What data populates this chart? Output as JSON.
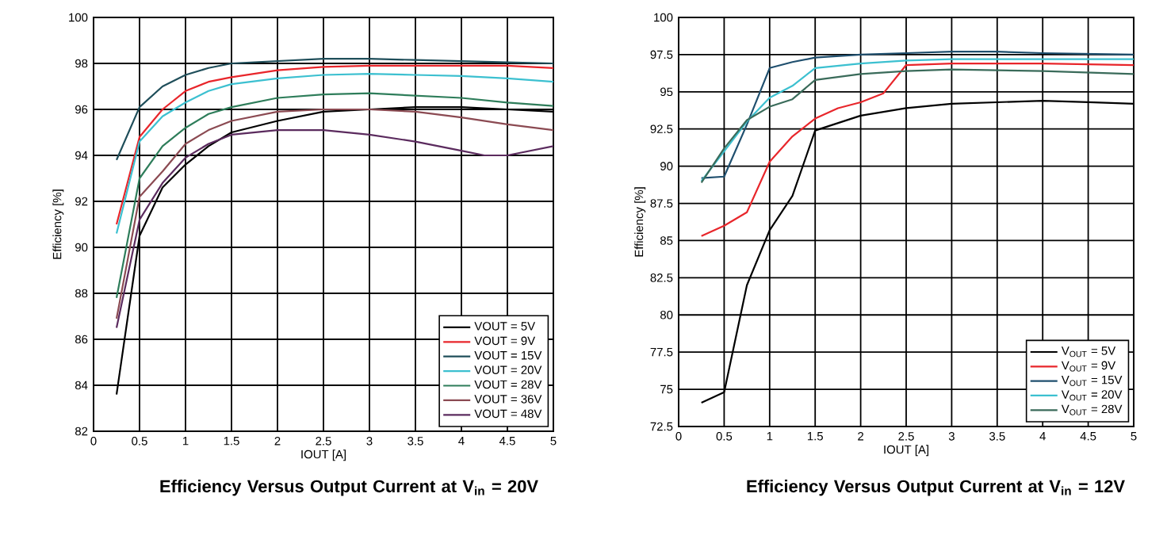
{
  "chart_data": [
    {
      "type": "line",
      "title": "Efficiency Versus Output Current at V$_{in}$ = 20V",
      "xlabel": "IOUT [A]",
      "ylabel": "Efficiency [%]",
      "xlim": [
        0,
        5
      ],
      "ylim": [
        82,
        100
      ],
      "xticks": [
        0,
        0.5,
        1,
        1.5,
        2,
        2.5,
        3,
        3.5,
        4,
        4.5,
        5
      ],
      "yticks": [
        82,
        84,
        86,
        88,
        90,
        92,
        94,
        96,
        98,
        100
      ],
      "grid": true,
      "legend": "bottom right",
      "line_style": "solid",
      "series": [
        {
          "name": "VOUT = 5V",
          "color": "#000000",
          "x": [
            0.25,
            0.5,
            0.75,
            1,
            1.25,
            1.5,
            2,
            2.5,
            3,
            3.5,
            4,
            4.5,
            5
          ],
          "values": [
            83.6,
            90.5,
            92.6,
            93.6,
            94.4,
            95.0,
            95.5,
            95.9,
            96.0,
            96.1,
            96.1,
            96.0,
            95.9
          ]
        },
        {
          "name": "VOUT = 9V",
          "color": "#e8262b",
          "x": [
            0.25,
            0.5,
            0.75,
            1,
            1.25,
            1.5,
            2,
            2.5,
            3,
            3.5,
            4,
            4.5,
            5
          ],
          "values": [
            91.0,
            94.8,
            96.0,
            96.8,
            97.2,
            97.4,
            97.7,
            97.85,
            97.9,
            97.9,
            97.9,
            97.9,
            97.8
          ]
        },
        {
          "name": "VOUT = 15V",
          "color": "#1f4e5a",
          "x": [
            0.25,
            0.5,
            0.75,
            1,
            1.25,
            1.5,
            2,
            2.5,
            3,
            3.5,
            4,
            4.5,
            5
          ],
          "values": [
            93.8,
            96.1,
            97.0,
            97.5,
            97.8,
            98.0,
            98.1,
            98.2,
            98.2,
            98.15,
            98.1,
            98.05,
            98.0
          ]
        },
        {
          "name": "VOUT = 20V",
          "color": "#3cc0d0",
          "x": [
            0.25,
            0.5,
            0.75,
            1,
            1.25,
            1.5,
            2,
            2.5,
            3,
            3.5,
            4,
            4.5,
            5
          ],
          "values": [
            90.6,
            94.6,
            95.7,
            96.3,
            96.8,
            97.1,
            97.35,
            97.5,
            97.55,
            97.5,
            97.45,
            97.35,
            97.2
          ]
        },
        {
          "name": "VOUT = 28V",
          "color": "#2e7d5a",
          "x": [
            0.25,
            0.5,
            0.75,
            1,
            1.25,
            1.5,
            2,
            2.5,
            3,
            3.5,
            4,
            4.5,
            5
          ],
          "values": [
            87.8,
            93.0,
            94.4,
            95.2,
            95.8,
            96.1,
            96.5,
            96.65,
            96.7,
            96.6,
            96.5,
            96.3,
            96.15
          ]
        },
        {
          "name": "VOUT = 36V",
          "color": "#8b4a52",
          "x": [
            0.25,
            0.5,
            0.75,
            1,
            1.25,
            1.5,
            2,
            2.5,
            3,
            3.5,
            4,
            4.5,
            5
          ],
          "values": [
            86.9,
            92.2,
            93.3,
            94.5,
            95.1,
            95.5,
            95.9,
            96.0,
            96.0,
            95.9,
            95.65,
            95.35,
            95.1
          ]
        },
        {
          "name": "VOUT = 48V",
          "color": "#5b2b5e",
          "x": [
            0.25,
            0.5,
            0.75,
            1,
            1.25,
            1.5,
            2,
            2.5,
            3,
            3.5,
            4,
            4.25,
            4.5,
            5
          ],
          "values": [
            86.5,
            91.2,
            92.8,
            93.9,
            94.5,
            94.9,
            95.1,
            95.1,
            94.9,
            94.6,
            94.2,
            94.0,
            94.0,
            94.4
          ]
        }
      ]
    },
    {
      "type": "line",
      "title": "Efficiency Versus Output Current at V$_{in}$ = 12V",
      "xlabel": "IOUT [A]",
      "ylabel": "Efficiency [%]",
      "xlim": [
        0,
        5
      ],
      "ylim": [
        72.5,
        100
      ],
      "xticks": [
        0,
        0.5,
        1,
        1.5,
        2,
        2.5,
        3,
        3.5,
        4,
        4.5,
        5
      ],
      "yticks": [
        72.5,
        75,
        77.5,
        80,
        82.5,
        85,
        87.5,
        90,
        92.5,
        95,
        97.5,
        100
      ],
      "grid": true,
      "legend": "bottom right",
      "line_style": "solid",
      "series": [
        {
          "name": "V$_{OUT}$ = 5V",
          "color": "#000000",
          "x": [
            0.25,
            0.5,
            0.75,
            1,
            1.25,
            1.5,
            2,
            2.5,
            3,
            3.5,
            4,
            4.5,
            5
          ],
          "values": [
            74.1,
            74.8,
            82.0,
            85.7,
            88.0,
            92.4,
            93.4,
            93.9,
            94.2,
            94.3,
            94.4,
            94.3,
            94.2
          ]
        },
        {
          "name": "V$_{OUT}$ = 9V",
          "color": "#e8262b",
          "x": [
            0.25,
            0.5,
            0.75,
            1,
            1.25,
            1.5,
            1.75,
            2,
            2.25,
            2.5,
            3,
            4,
            5
          ],
          "values": [
            85.3,
            86.0,
            86.9,
            90.3,
            92.0,
            93.2,
            93.9,
            94.3,
            94.9,
            96.8,
            96.9,
            96.9,
            96.8
          ]
        },
        {
          "name": "V$_{OUT}$ = 15V",
          "color": "#1f4f6e",
          "x": [
            0.25,
            0.5,
            0.75,
            1,
            1.25,
            1.5,
            2,
            2.5,
            3,
            3.5,
            4,
            5
          ],
          "values": [
            89.2,
            89.3,
            92.8,
            96.6,
            97.0,
            97.3,
            97.5,
            97.6,
            97.7,
            97.7,
            97.6,
            97.5
          ]
        },
        {
          "name": "V$_{OUT}$ = 20V",
          "color": "#3cc0d0",
          "x": [
            0.25,
            0.5,
            0.75,
            1,
            1.25,
            1.5,
            2,
            2.5,
            3,
            4,
            5
          ],
          "values": [
            89.0,
            91.0,
            93.0,
            94.6,
            95.4,
            96.6,
            96.9,
            97.1,
            97.2,
            97.2,
            97.2
          ]
        },
        {
          "name": "V$_{OUT}$ = 28V",
          "color": "#3a6b5a",
          "x": [
            0.25,
            0.5,
            0.75,
            1,
            1.25,
            1.5,
            2,
            2.5,
            3,
            4,
            5
          ],
          "values": [
            88.9,
            91.2,
            93.1,
            94.0,
            94.5,
            95.8,
            96.2,
            96.4,
            96.5,
            96.4,
            96.2
          ]
        }
      ]
    }
  ]
}
